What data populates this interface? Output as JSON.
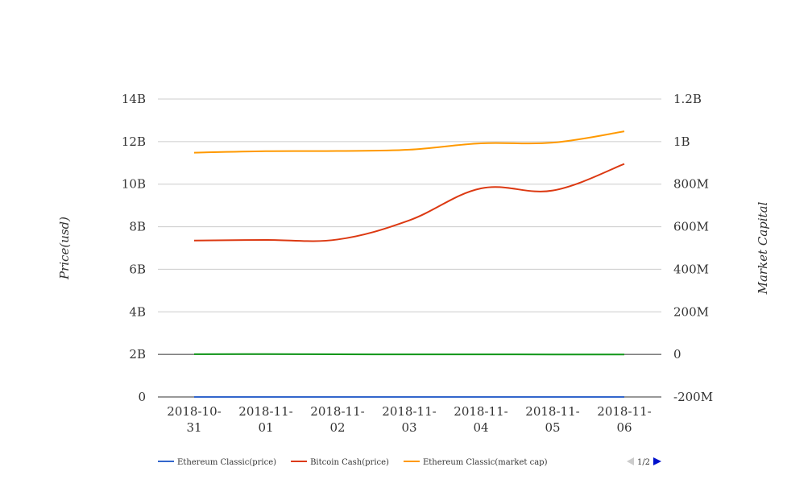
{
  "chart_data": {
    "type": "line",
    "categories": [
      "2018-10-31",
      "2018-11-01",
      "2018-11-02",
      "2018-11-03",
      "2018-11-04",
      "2018-11-05",
      "2018-11-06"
    ],
    "x_tick_labels": [
      [
        "2018-10-",
        "31"
      ],
      [
        "2018-11-",
        "01"
      ],
      [
        "2018-11-",
        "02"
      ],
      [
        "2018-11-",
        "03"
      ],
      [
        "2018-11-",
        "04"
      ],
      [
        "2018-11-",
        "05"
      ],
      [
        "2018-11-",
        "06"
      ]
    ],
    "ylabel": "Price(usd)",
    "y2label": "Market Capital",
    "ylim": [
      0,
      14000000000
    ],
    "y2lim": [
      -200000000,
      1200000000
    ],
    "y_ticks": [
      "0",
      "2B",
      "4B",
      "6B",
      "8B",
      "10B",
      "12B",
      "14B"
    ],
    "y2_ticks": [
      "-200M",
      "0",
      "200M",
      "400M",
      "600M",
      "800M",
      "1B",
      "1.2B"
    ],
    "grid": true,
    "legend_position": "bottom-left",
    "series": [
      {
        "name": "Ethereum Classic(price)",
        "axis": "left",
        "color": "#3366cc",
        "values": [
          10,
          10,
          10,
          10,
          10,
          10,
          10
        ]
      },
      {
        "name": "Bitcoin Cash(price)",
        "axis": "left",
        "color": "#dc3912",
        "values": [
          7350000000,
          7380000000,
          7400000000,
          8300000000,
          9800000000,
          9700000000,
          10950000000
        ]
      },
      {
        "name": "Ethereum Classic(market cap)",
        "axis": "right",
        "color": "#ff9900",
        "values": [
          948000000,
          955000000,
          956000000,
          962000000,
          992000000,
          995000000,
          1048000000
        ]
      },
      {
        "name": "",
        "axis": "right",
        "color": "#109618",
        "values": [
          1000000,
          1500000,
          500000,
          0,
          0,
          -200000,
          -500000
        ]
      }
    ],
    "legend_page": "1/2"
  }
}
